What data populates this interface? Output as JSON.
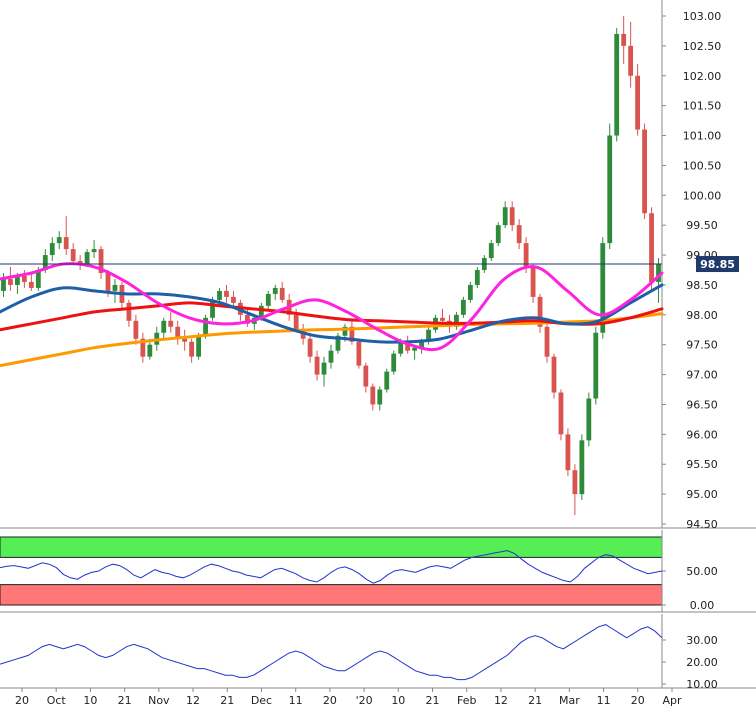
{
  "chart_data": {
    "type": "candlestick",
    "title": "",
    "colors": {
      "up": "#2e8b3a",
      "down": "#d9534f",
      "price_line": "#1f3a6b",
      "sma_fast": "#ff22dd",
      "sma_mid": "#1f5fa8",
      "sma_slow": "#ee1111",
      "sma_long": "#ff9900",
      "rsi_line": "#2233cc",
      "rsi_overbought": "#55ee55",
      "rsi_oversold": "#ff7777",
      "adx_line": "#2233cc"
    },
    "main": {
      "ylim": [
        94.5,
        103.0
      ],
      "y_ticks": [
        "94.50",
        "95.00",
        "95.50",
        "96.00",
        "96.50",
        "97.00",
        "97.50",
        "98.00",
        "98.50",
        "99.00",
        "99.50",
        "100.00",
        "100.50",
        "101.00",
        "101.50",
        "102.00",
        "102.50",
        "103.00"
      ],
      "last_price": 98.85,
      "last_price_label": "98.85",
      "candles": [
        [
          98.4,
          98.7,
          98.3,
          98.6
        ],
        [
          98.6,
          98.8,
          98.4,
          98.5
        ],
        [
          98.5,
          98.7,
          98.35,
          98.65
        ],
        [
          98.65,
          98.75,
          98.45,
          98.55
        ],
        [
          98.55,
          98.7,
          98.4,
          98.45
        ],
        [
          98.45,
          98.8,
          98.4,
          98.75
        ],
        [
          98.75,
          99.1,
          98.7,
          99.0
        ],
        [
          99.0,
          99.3,
          98.9,
          99.2
        ],
        [
          99.2,
          99.4,
          99.1,
          99.3
        ],
        [
          99.3,
          99.65,
          99.0,
          99.1
        ],
        [
          99.1,
          99.2,
          98.85,
          98.9
        ],
        [
          98.9,
          99.0,
          98.75,
          98.85
        ],
        [
          98.85,
          99.1,
          98.8,
          99.05
        ],
        [
          99.05,
          99.25,
          98.95,
          99.1
        ],
        [
          99.1,
          99.15,
          98.6,
          98.7
        ],
        [
          98.7,
          98.75,
          98.3,
          98.4
        ],
        [
          98.4,
          98.6,
          98.2,
          98.5
        ],
        [
          98.5,
          98.55,
          98.1,
          98.2
        ],
        [
          98.2,
          98.25,
          97.8,
          97.9
        ],
        [
          97.9,
          98.0,
          97.5,
          97.6
        ],
        [
          97.6,
          97.7,
          97.2,
          97.3
        ],
        [
          97.3,
          97.6,
          97.25,
          97.5
        ],
        [
          97.5,
          97.8,
          97.4,
          97.7
        ],
        [
          97.7,
          97.95,
          97.6,
          97.9
        ],
        [
          97.9,
          98.05,
          97.7,
          97.8
        ],
        [
          97.8,
          97.9,
          97.5,
          97.6
        ],
        [
          97.6,
          97.75,
          97.4,
          97.55
        ],
        [
          97.55,
          97.6,
          97.2,
          97.3
        ],
        [
          97.3,
          97.7,
          97.25,
          97.65
        ],
        [
          97.65,
          98.0,
          97.6,
          97.95
        ],
        [
          97.95,
          98.3,
          97.9,
          98.25
        ],
        [
          98.25,
          98.45,
          98.15,
          98.4
        ],
        [
          98.4,
          98.5,
          98.2,
          98.3
        ],
        [
          98.3,
          98.4,
          98.1,
          98.2
        ],
        [
          98.2,
          98.25,
          97.9,
          98.0
        ],
        [
          98.0,
          98.1,
          97.8,
          97.85
        ],
        [
          97.85,
          98.0,
          97.75,
          97.95
        ],
        [
          97.95,
          98.2,
          97.9,
          98.15
        ],
        [
          98.15,
          98.4,
          98.1,
          98.35
        ],
        [
          98.35,
          98.5,
          98.25,
          98.45
        ],
        [
          98.45,
          98.55,
          98.2,
          98.25
        ],
        [
          98.25,
          98.35,
          97.9,
          98.0
        ],
        [
          98.0,
          98.1,
          97.7,
          97.75
        ],
        [
          97.75,
          97.85,
          97.5,
          97.6
        ],
        [
          97.6,
          97.7,
          97.2,
          97.3
        ],
        [
          97.3,
          97.4,
          96.9,
          97.0
        ],
        [
          97.0,
          97.3,
          96.8,
          97.2
        ],
        [
          97.2,
          97.5,
          97.1,
          97.4
        ],
        [
          97.4,
          97.7,
          97.35,
          97.65
        ],
        [
          97.65,
          97.85,
          97.55,
          97.8
        ],
        [
          97.8,
          97.9,
          97.5,
          97.55
        ],
        [
          97.55,
          97.6,
          97.1,
          97.15
        ],
        [
          97.15,
          97.2,
          96.7,
          96.8
        ],
        [
          96.8,
          96.85,
          96.4,
          96.5
        ],
        [
          96.5,
          96.8,
          96.4,
          96.75
        ],
        [
          96.75,
          97.1,
          96.7,
          97.05
        ],
        [
          97.05,
          97.4,
          97.0,
          97.35
        ],
        [
          97.35,
          97.6,
          97.3,
          97.55
        ],
        [
          97.55,
          97.65,
          97.35,
          97.4
        ],
        [
          97.4,
          97.5,
          97.25,
          97.45
        ],
        [
          97.45,
          97.6,
          97.35,
          97.55
        ],
        [
          97.55,
          97.8,
          97.5,
          97.75
        ],
        [
          97.75,
          98.0,
          97.7,
          97.95
        ],
        [
          97.95,
          98.1,
          97.85,
          97.9
        ],
        [
          97.9,
          98.0,
          97.7,
          97.8
        ],
        [
          97.8,
          98.05,
          97.75,
          98.0
        ],
        [
          98.0,
          98.3,
          97.95,
          98.25
        ],
        [
          98.25,
          98.55,
          98.2,
          98.5
        ],
        [
          98.5,
          98.8,
          98.45,
          98.75
        ],
        [
          98.75,
          99.0,
          98.7,
          98.95
        ],
        [
          98.95,
          99.25,
          98.9,
          99.2
        ],
        [
          99.2,
          99.55,
          99.15,
          99.5
        ],
        [
          99.5,
          99.9,
          99.45,
          99.8
        ],
        [
          99.8,
          99.9,
          99.4,
          99.5
        ],
        [
          99.5,
          99.6,
          99.1,
          99.2
        ],
        [
          99.2,
          99.3,
          98.7,
          98.8
        ],
        [
          98.8,
          98.85,
          98.2,
          98.3
        ],
        [
          98.3,
          98.35,
          97.7,
          97.8
        ],
        [
          97.8,
          97.9,
          97.2,
          97.3
        ],
        [
          97.3,
          97.35,
          96.6,
          96.7
        ],
        [
          96.7,
          96.75,
          95.9,
          96.0
        ],
        [
          96.0,
          96.1,
          95.3,
          95.4
        ],
        [
          95.4,
          95.5,
          94.65,
          95.0
        ],
        [
          95.0,
          96.0,
          94.9,
          95.9
        ],
        [
          95.9,
          96.7,
          95.8,
          96.6
        ],
        [
          96.6,
          97.8,
          96.5,
          97.7
        ],
        [
          97.7,
          99.3,
          97.6,
          99.2
        ],
        [
          99.2,
          101.2,
          99.1,
          101.0
        ],
        [
          101.0,
          102.8,
          100.9,
          102.7
        ],
        [
          102.7,
          103.0,
          102.2,
          102.5
        ],
        [
          102.5,
          102.9,
          101.8,
          102.0
        ],
        [
          102.0,
          102.2,
          101.0,
          101.1
        ],
        [
          101.1,
          101.2,
          99.6,
          99.7
        ],
        [
          99.7,
          99.8,
          98.4,
          98.55
        ],
        [
          98.55,
          98.95,
          98.2,
          98.85
        ]
      ],
      "sma_fast": [
        98.6,
        98.7,
        98.85,
        98.8,
        98.55,
        98.2,
        97.95,
        97.85,
        97.9,
        98.1,
        98.25,
        98.05,
        97.75,
        97.5,
        97.45,
        97.95,
        98.6,
        98.8,
        98.4,
        98.0,
        98.25,
        98.7
      ],
      "sma_mid": [
        98.05,
        98.3,
        98.45,
        98.4,
        98.35,
        98.35,
        98.3,
        98.2,
        98.0,
        97.8,
        97.65,
        97.6,
        97.55,
        97.55,
        97.6,
        97.75,
        97.9,
        97.95,
        97.85,
        97.9,
        98.2,
        98.5
      ],
      "sma_slow": [
        97.75,
        97.85,
        97.95,
        98.05,
        98.1,
        98.15,
        98.2,
        98.15,
        98.1,
        98.05,
        97.98,
        97.92,
        97.9,
        97.88,
        97.86,
        97.86,
        97.88,
        97.9,
        97.85,
        97.85,
        97.95,
        98.1
      ],
      "sma_long": [
        97.15,
        97.25,
        97.35,
        97.45,
        97.52,
        97.58,
        97.63,
        97.68,
        97.71,
        97.73,
        97.75,
        97.76,
        97.78,
        97.8,
        97.82,
        97.84,
        97.85,
        97.86,
        97.88,
        97.9,
        97.95,
        98.02
      ]
    },
    "rsi": {
      "ylim": [
        0,
        100
      ],
      "y_ticks": [
        "0.00",
        "50.00"
      ],
      "overbought": 70,
      "oversold": 30,
      "values": [
        55,
        57,
        58,
        56,
        54,
        58,
        62,
        60,
        55,
        45,
        40,
        38,
        44,
        48,
        50,
        56,
        60,
        58,
        52,
        44,
        40,
        46,
        52,
        48,
        46,
        42,
        40,
        44,
        50,
        56,
        60,
        58,
        54,
        50,
        48,
        44,
        42,
        40,
        46,
        52,
        54,
        50,
        46,
        40,
        36,
        34,
        40,
        48,
        54,
        56,
        52,
        46,
        38,
        32,
        36,
        44,
        50,
        52,
        50,
        48,
        52,
        56,
        58,
        56,
        54,
        60,
        66,
        70,
        72,
        74,
        76,
        78,
        80,
        76,
        68,
        60,
        54,
        48,
        44,
        40,
        36,
        34,
        42,
        54,
        62,
        70,
        74,
        72,
        66,
        60,
        54,
        50,
        46,
        48,
        50
      ]
    },
    "adx": {
      "ylim": [
        10,
        40
      ],
      "y_ticks": [
        "10.00",
        "20.00",
        "30.00"
      ],
      "values": [
        19,
        20,
        21,
        22,
        23,
        25,
        27,
        28,
        27,
        26,
        27,
        28,
        27,
        25,
        23,
        22,
        23,
        25,
        27,
        28,
        27,
        26,
        24,
        22,
        21,
        20,
        19,
        18,
        17,
        17,
        16,
        15,
        14,
        14,
        13,
        13,
        14,
        16,
        18,
        20,
        22,
        24,
        25,
        24,
        22,
        20,
        18,
        17,
        16,
        16,
        18,
        20,
        22,
        24,
        25,
        24,
        22,
        20,
        18,
        16,
        15,
        14,
        14,
        13,
        13,
        12,
        12,
        13,
        15,
        17,
        19,
        21,
        23,
        26,
        29,
        31,
        32,
        31,
        29,
        27,
        26,
        28,
        30,
        32,
        34,
        36,
        37,
        35,
        33,
        31,
        33,
        35,
        36,
        34,
        31
      ]
    },
    "x_ticks": [
      "20",
      "Oct",
      "10",
      "21",
      "Nov",
      "12",
      "21",
      "Dec",
      "11",
      "20",
      "'20",
      "10",
      "21",
      "Feb",
      "12",
      "21",
      "Mar",
      "11",
      "20",
      "Apr"
    ]
  }
}
